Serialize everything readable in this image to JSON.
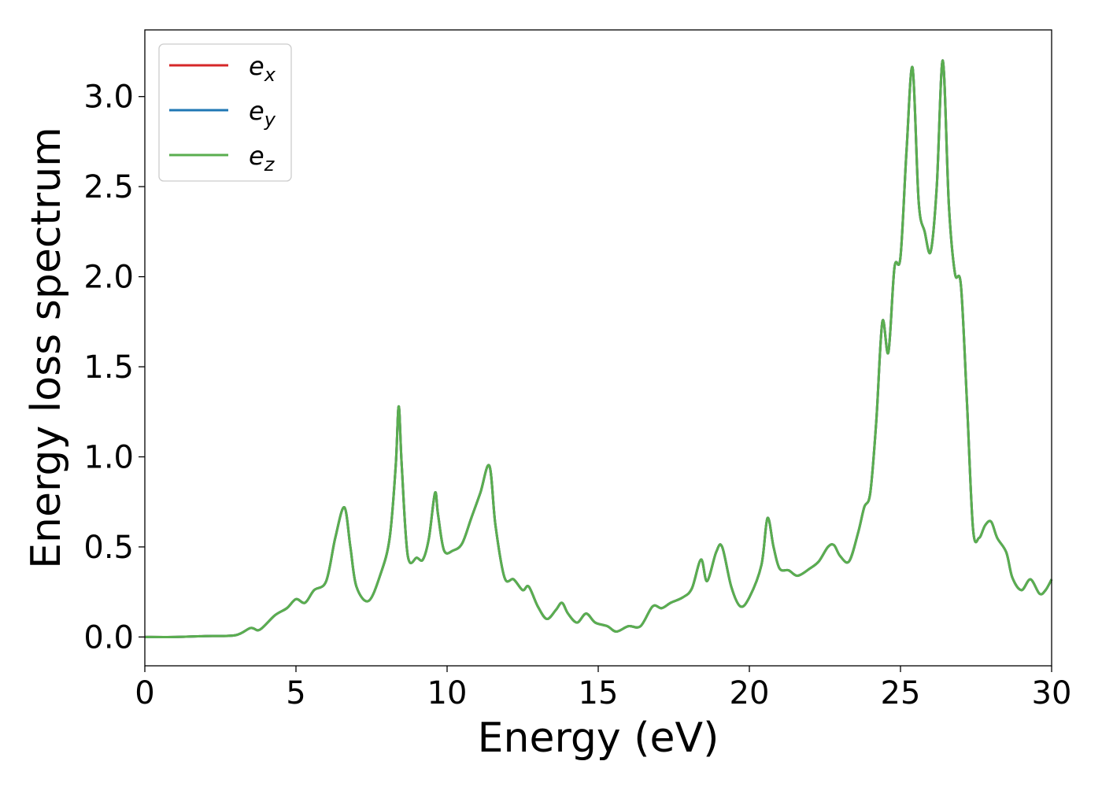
{
  "chart_data": {
    "type": "line",
    "title": "",
    "xlabel": "Energy (eV)",
    "ylabel": "Energy loss spectrum",
    "xlim": [
      0,
      30
    ],
    "ylim": [
      -0.16,
      3.37
    ],
    "xticks": [
      0,
      5,
      10,
      15,
      20,
      25,
      30
    ],
    "xtick_labels": [
      "0",
      "5",
      "10",
      "15",
      "20",
      "25",
      "30"
    ],
    "yticks": [
      0.0,
      0.5,
      1.0,
      1.5,
      2.0,
      2.5,
      3.0
    ],
    "ytick_labels": [
      "0.0",
      "0.5",
      "1.0",
      "1.5",
      "2.0",
      "2.5",
      "3.0"
    ],
    "grid": false,
    "legend_position": "top-left",
    "series": [
      {
        "name": "e_x",
        "legend_base": "e",
        "legend_sub": "x",
        "color": "#d62728",
        "x": [
          0,
          1,
          2,
          3,
          3.5,
          3.8,
          4.3,
          4.7,
          5.0,
          5.3,
          5.6,
          6.0,
          6.3,
          6.6,
          6.8,
          7.0,
          7.4,
          7.8,
          8.1,
          8.3,
          8.4,
          8.5,
          8.7,
          9.0,
          9.2,
          9.4,
          9.6,
          9.7,
          9.9,
          10.2,
          10.5,
          10.8,
          11.1,
          11.4,
          11.6,
          11.9,
          12.2,
          12.5,
          12.7,
          13.0,
          13.3,
          13.6,
          13.8,
          14.0,
          14.3,
          14.6,
          14.9,
          15.3,
          15.6,
          16.0,
          16.4,
          16.8,
          17.1,
          17.4,
          17.8,
          18.1,
          18.4,
          18.6,
          18.9,
          19.1,
          19.4,
          19.7,
          20.0,
          20.4,
          20.6,
          20.8,
          21.0,
          21.3,
          21.6,
          22.0,
          22.3,
          22.6,
          22.8,
          23.0,
          23.3,
          23.6,
          23.8,
          24.0,
          24.2,
          24.4,
          24.6,
          24.8,
          25.0,
          25.2,
          25.4,
          25.6,
          25.8,
          26.0,
          26.2,
          26.4,
          26.6,
          26.8,
          27.0,
          27.2,
          27.4,
          27.6,
          27.8,
          28.0,
          28.2,
          28.5,
          28.7,
          29.0,
          29.3,
          29.6,
          29.8,
          30.0
        ],
        "y": [
          0.0,
          0.0,
          0.005,
          0.01,
          0.05,
          0.04,
          0.12,
          0.16,
          0.21,
          0.19,
          0.26,
          0.31,
          0.55,
          0.72,
          0.5,
          0.28,
          0.2,
          0.35,
          0.55,
          0.95,
          1.28,
          0.95,
          0.45,
          0.44,
          0.43,
          0.55,
          0.8,
          0.68,
          0.48,
          0.48,
          0.52,
          0.66,
          0.8,
          0.95,
          0.62,
          0.33,
          0.32,
          0.26,
          0.28,
          0.17,
          0.1,
          0.15,
          0.19,
          0.13,
          0.08,
          0.13,
          0.08,
          0.06,
          0.03,
          0.06,
          0.06,
          0.17,
          0.16,
          0.19,
          0.22,
          0.27,
          0.43,
          0.31,
          0.47,
          0.5,
          0.28,
          0.17,
          0.22,
          0.4,
          0.66,
          0.5,
          0.38,
          0.37,
          0.34,
          0.38,
          0.42,
          0.5,
          0.51,
          0.45,
          0.42,
          0.58,
          0.72,
          0.8,
          1.2,
          1.75,
          1.58,
          2.05,
          2.11,
          2.7,
          3.16,
          2.42,
          2.25,
          2.14,
          2.5,
          3.2,
          2.4,
          2.02,
          1.95,
          1.3,
          0.6,
          0.55,
          0.62,
          0.64,
          0.55,
          0.47,
          0.33,
          0.26,
          0.32,
          0.24,
          0.26,
          0.32
        ]
      },
      {
        "name": "e_y",
        "legend_base": "e",
        "legend_sub": "y",
        "color": "#1f77b4",
        "x": [
          0,
          1,
          2,
          3,
          3.5,
          3.8,
          4.3,
          4.7,
          5.0,
          5.3,
          5.6,
          6.0,
          6.3,
          6.6,
          6.8,
          7.0,
          7.4,
          7.8,
          8.1,
          8.3,
          8.4,
          8.5,
          8.7,
          9.0,
          9.2,
          9.4,
          9.6,
          9.7,
          9.9,
          10.2,
          10.5,
          10.8,
          11.1,
          11.4,
          11.6,
          11.9,
          12.2,
          12.5,
          12.7,
          13.0,
          13.3,
          13.6,
          13.8,
          14.0,
          14.3,
          14.6,
          14.9,
          15.3,
          15.6,
          16.0,
          16.4,
          16.8,
          17.1,
          17.4,
          17.8,
          18.1,
          18.4,
          18.6,
          18.9,
          19.1,
          19.4,
          19.7,
          20.0,
          20.4,
          20.6,
          20.8,
          21.0,
          21.3,
          21.6,
          22.0,
          22.3,
          22.6,
          22.8,
          23.0,
          23.3,
          23.6,
          23.8,
          24.0,
          24.2,
          24.4,
          24.6,
          24.8,
          25.0,
          25.2,
          25.4,
          25.6,
          25.8,
          26.0,
          26.2,
          26.4,
          26.6,
          26.8,
          27.0,
          27.2,
          27.4,
          27.6,
          27.8,
          28.0,
          28.2,
          28.5,
          28.7,
          29.0,
          29.3,
          29.6,
          29.8,
          30.0
        ],
        "y": [
          0.0,
          0.0,
          0.005,
          0.01,
          0.05,
          0.04,
          0.12,
          0.16,
          0.21,
          0.19,
          0.26,
          0.31,
          0.55,
          0.72,
          0.5,
          0.28,
          0.2,
          0.35,
          0.55,
          0.95,
          1.28,
          0.95,
          0.45,
          0.44,
          0.43,
          0.55,
          0.8,
          0.68,
          0.48,
          0.48,
          0.52,
          0.66,
          0.8,
          0.95,
          0.62,
          0.33,
          0.32,
          0.26,
          0.28,
          0.17,
          0.1,
          0.15,
          0.19,
          0.13,
          0.08,
          0.13,
          0.08,
          0.06,
          0.03,
          0.06,
          0.06,
          0.17,
          0.16,
          0.19,
          0.22,
          0.27,
          0.43,
          0.31,
          0.47,
          0.5,
          0.28,
          0.17,
          0.22,
          0.4,
          0.66,
          0.5,
          0.38,
          0.37,
          0.34,
          0.38,
          0.42,
          0.5,
          0.51,
          0.45,
          0.42,
          0.58,
          0.72,
          0.8,
          1.2,
          1.75,
          1.58,
          2.05,
          2.11,
          2.7,
          3.16,
          2.42,
          2.25,
          2.14,
          2.5,
          3.2,
          2.4,
          2.02,
          1.95,
          1.3,
          0.6,
          0.55,
          0.62,
          0.64,
          0.55,
          0.47,
          0.33,
          0.26,
          0.32,
          0.24,
          0.26,
          0.32
        ]
      },
      {
        "name": "e_z",
        "legend_base": "e",
        "legend_sub": "z",
        "color": "#5aae4f",
        "x": [
          0,
          1,
          2,
          3,
          3.5,
          3.8,
          4.3,
          4.7,
          5.0,
          5.3,
          5.6,
          6.0,
          6.3,
          6.6,
          6.8,
          7.0,
          7.4,
          7.8,
          8.1,
          8.3,
          8.4,
          8.5,
          8.7,
          9.0,
          9.2,
          9.4,
          9.6,
          9.7,
          9.9,
          10.2,
          10.5,
          10.8,
          11.1,
          11.4,
          11.6,
          11.9,
          12.2,
          12.5,
          12.7,
          13.0,
          13.3,
          13.6,
          13.8,
          14.0,
          14.3,
          14.6,
          14.9,
          15.3,
          15.6,
          16.0,
          16.4,
          16.8,
          17.1,
          17.4,
          17.8,
          18.1,
          18.4,
          18.6,
          18.9,
          19.1,
          19.4,
          19.7,
          20.0,
          20.4,
          20.6,
          20.8,
          21.0,
          21.3,
          21.6,
          22.0,
          22.3,
          22.6,
          22.8,
          23.0,
          23.3,
          23.6,
          23.8,
          24.0,
          24.2,
          24.4,
          24.6,
          24.8,
          25.0,
          25.2,
          25.4,
          25.6,
          25.8,
          26.0,
          26.2,
          26.4,
          26.6,
          26.8,
          27.0,
          27.2,
          27.4,
          27.6,
          27.8,
          28.0,
          28.2,
          28.5,
          28.7,
          29.0,
          29.3,
          29.6,
          29.8,
          30.0
        ],
        "y": [
          0.0,
          0.0,
          0.005,
          0.01,
          0.05,
          0.04,
          0.12,
          0.16,
          0.21,
          0.19,
          0.26,
          0.31,
          0.55,
          0.72,
          0.5,
          0.28,
          0.2,
          0.35,
          0.55,
          0.95,
          1.28,
          0.95,
          0.45,
          0.44,
          0.43,
          0.55,
          0.8,
          0.68,
          0.48,
          0.48,
          0.52,
          0.66,
          0.8,
          0.95,
          0.62,
          0.33,
          0.32,
          0.26,
          0.28,
          0.17,
          0.1,
          0.15,
          0.19,
          0.13,
          0.08,
          0.13,
          0.08,
          0.06,
          0.03,
          0.06,
          0.06,
          0.17,
          0.16,
          0.19,
          0.22,
          0.27,
          0.43,
          0.31,
          0.47,
          0.5,
          0.28,
          0.17,
          0.22,
          0.4,
          0.66,
          0.5,
          0.38,
          0.37,
          0.34,
          0.38,
          0.42,
          0.5,
          0.51,
          0.45,
          0.42,
          0.58,
          0.72,
          0.8,
          1.2,
          1.75,
          1.58,
          2.05,
          2.11,
          2.7,
          3.16,
          2.42,
          2.25,
          2.14,
          2.5,
          3.2,
          2.4,
          2.02,
          1.95,
          1.3,
          0.6,
          0.55,
          0.62,
          0.64,
          0.55,
          0.47,
          0.33,
          0.26,
          0.32,
          0.24,
          0.26,
          0.32
        ]
      }
    ]
  }
}
